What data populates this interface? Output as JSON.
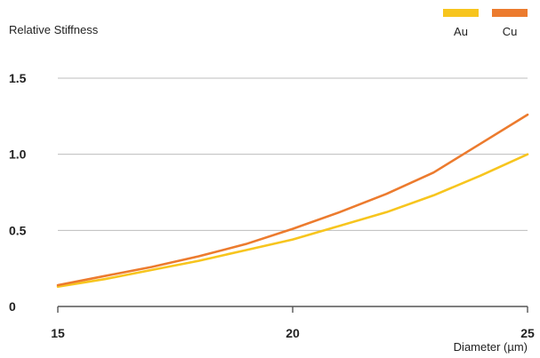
{
  "chart_data": {
    "type": "line",
    "title": "",
    "ylabel": "Relative Stiffness",
    "xlabel": "Diameter (µm)",
    "xlim": [
      15,
      25
    ],
    "ylim": [
      0,
      1.5
    ],
    "x_ticks": [
      "15",
      "20",
      "25"
    ],
    "y_ticks": [
      "0",
      "0.5",
      "1.0",
      "1.5"
    ],
    "grid": "horizontal",
    "legend_position": "top-right",
    "series": [
      {
        "name": "Au",
        "color": "#F7C51E",
        "x": [
          15,
          16,
          17,
          18,
          19,
          20,
          21,
          22,
          23,
          24,
          25
        ],
        "y": [
          0.13,
          0.18,
          0.24,
          0.3,
          0.37,
          0.44,
          0.53,
          0.62,
          0.73,
          0.86,
          1.0
        ]
      },
      {
        "name": "Cu",
        "color": "#EC7B2E",
        "x": [
          15,
          16,
          17,
          18,
          19,
          20,
          21,
          22,
          23,
          24,
          25
        ],
        "y": [
          0.14,
          0.2,
          0.26,
          0.33,
          0.41,
          0.51,
          0.62,
          0.74,
          0.88,
          1.07,
          1.26
        ]
      }
    ]
  }
}
